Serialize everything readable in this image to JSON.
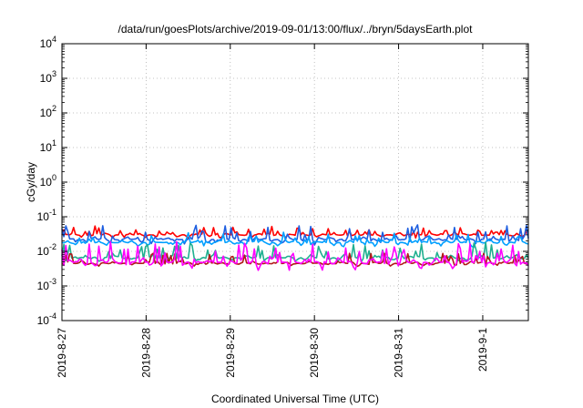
{
  "chart_data": {
    "type": "line",
    "title": "/data/run/goesPlots/archive/2019-09-01/13:00/flux/../bryn/5daysEarth.plot",
    "xlabel": "Coordinated Universal Time (UTC)",
    "ylabel": "cGy/day",
    "yscale": "log",
    "ylim": [
      0.0001,
      10000
    ],
    "ytick_values": [
      0.0001,
      0.001,
      0.01,
      0.1,
      1,
      10,
      100,
      1000,
      10000
    ],
    "ytick_base": [
      "10",
      "10",
      "10",
      "10",
      "10",
      "10",
      "10",
      "10",
      "10"
    ],
    "ytick_exp": [
      "-4",
      "-3",
      "-2",
      "-1",
      "0",
      "1",
      "2",
      "3",
      "4"
    ],
    "xlim": [
      "2019-08-27T00:00",
      "2019-09-01T13:00"
    ],
    "xtick_values": [
      "2019-08-27T00:00",
      "2019-08-28T00:00",
      "2019-08-29T00:00",
      "2019-08-30T00:00",
      "2019-08-31T00:00",
      "2019-09-01T00:00"
    ],
    "xtick_labels": [
      "2019-8-27",
      "2019-8-28",
      "2019-8-29",
      "2019-8-30",
      "2019-8-31",
      "2019-9-1"
    ],
    "grid": true,
    "legend": "none",
    "series": [
      {
        "color": "#ff0000",
        "base": 0.03,
        "noise": 0.25,
        "spike": 1.7,
        "phase": 0.3
      },
      {
        "color": "#1f5fe0",
        "base": 0.022,
        "noise": 0.35,
        "spike": 2.6,
        "phase": 1.1
      },
      {
        "color": "#00a0ff",
        "base": 0.018,
        "noise": 0.3,
        "spike": 1.8,
        "phase": 2.2
      },
      {
        "color": "#20b090",
        "base": 0.0065,
        "noise": 0.3,
        "spike": 2.5,
        "phase": 3.7
      },
      {
        "color": "#b01818",
        "base": 0.0045,
        "noise": 0.2,
        "spike": 2.0,
        "phase": 4.4
      },
      {
        "color": "#ff00ff",
        "base": 0.0048,
        "noise": 0.45,
        "spike": 3.5,
        "phase": 5.1
      }
    ]
  }
}
